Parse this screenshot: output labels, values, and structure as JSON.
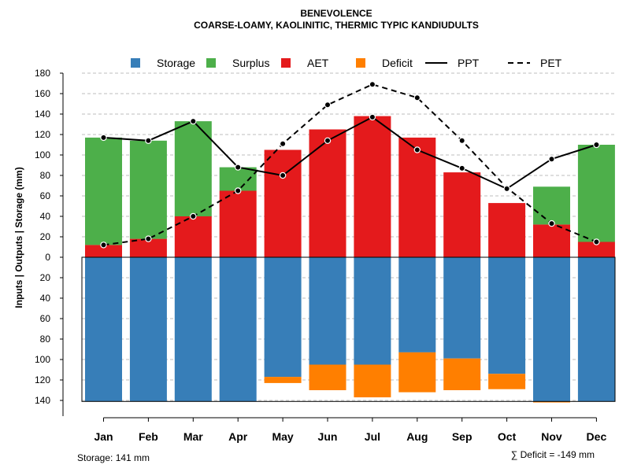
{
  "chart_data": {
    "type": "bar",
    "title": "BENEVOLENCE",
    "subtitle": "COARSE-LOAMY, KAOLINITIC, THERMIC TYPIC KANDIUDULTS",
    "ylabel": "Inputs | Outputs | Storage    (mm)",
    "ylim": [
      -140,
      180
    ],
    "y_ticks": [
      {
        "value": 180,
        "label": "180"
      },
      {
        "value": 160,
        "label": "160"
      },
      {
        "value": 140,
        "label": "140"
      },
      {
        "value": 120,
        "label": "120"
      },
      {
        "value": 100,
        "label": "100"
      },
      {
        "value": 80,
        "label": "80"
      },
      {
        "value": 60,
        "label": "60"
      },
      {
        "value": 40,
        "label": "40"
      },
      {
        "value": 20,
        "label": "20"
      },
      {
        "value": 0,
        "label": "0"
      },
      {
        "value": -20,
        "label": "20"
      },
      {
        "value": -40,
        "label": "40"
      },
      {
        "value": -60,
        "label": "60"
      },
      {
        "value": -80,
        "label": "80"
      },
      {
        "value": -100,
        "label": "100"
      },
      {
        "value": -120,
        "label": "120"
      },
      {
        "value": -140,
        "label": "140"
      }
    ],
    "categories": [
      "Jan",
      "Feb",
      "Mar",
      "Apr",
      "May",
      "Jun",
      "Jul",
      "Aug",
      "Sep",
      "Oct",
      "Nov",
      "Dec"
    ],
    "legend": [
      {
        "name": "Storage",
        "kind": "box",
        "color": "#377EB8"
      },
      {
        "name": "Surplus",
        "kind": "box",
        "color": "#4DAF4A"
      },
      {
        "name": "AET",
        "kind": "box",
        "color": "#E41A1C"
      },
      {
        "name": "Deficit",
        "kind": "box",
        "color": "#FF7F00"
      },
      {
        "name": "PPT",
        "kind": "solid",
        "color": "#000000"
      },
      {
        "name": "PET",
        "kind": "dashed",
        "color": "#000000"
      }
    ],
    "series": [
      {
        "name": "AET",
        "color": "#E41A1C",
        "values": [
          12,
          18,
          40,
          65,
          105,
          125,
          138,
          117,
          83,
          53,
          32,
          15
        ]
      },
      {
        "name": "Surplus",
        "color": "#4DAF4A",
        "values": [
          105,
          96,
          93,
          23,
          0,
          0,
          0,
          0,
          0,
          0,
          37,
          95
        ]
      },
      {
        "name": "Storage",
        "color": "#377EB8",
        "values": [
          141,
          141,
          141,
          141,
          117,
          105,
          105,
          93,
          99,
          114,
          141,
          141
        ]
      },
      {
        "name": "Deficit",
        "color": "#FF7F00",
        "values": [
          0,
          0,
          0,
          0,
          6,
          25,
          32,
          39,
          31,
          15,
          1,
          0
        ]
      },
      {
        "name": "PPT",
        "color": "#000000",
        "values": [
          117,
          114,
          133,
          88,
          80,
          114,
          137,
          105,
          87,
          67,
          96,
          110
        ]
      },
      {
        "name": "PET",
        "color": "#000000",
        "values": [
          12,
          18,
          40,
          65,
          111,
          149,
          169,
          156,
          114,
          68,
          33,
          15
        ]
      }
    ],
    "storage_capacity": 141,
    "storage_label": "Storage: 141 mm",
    "deficit_label": "∑ Deficit = -149 mm"
  }
}
